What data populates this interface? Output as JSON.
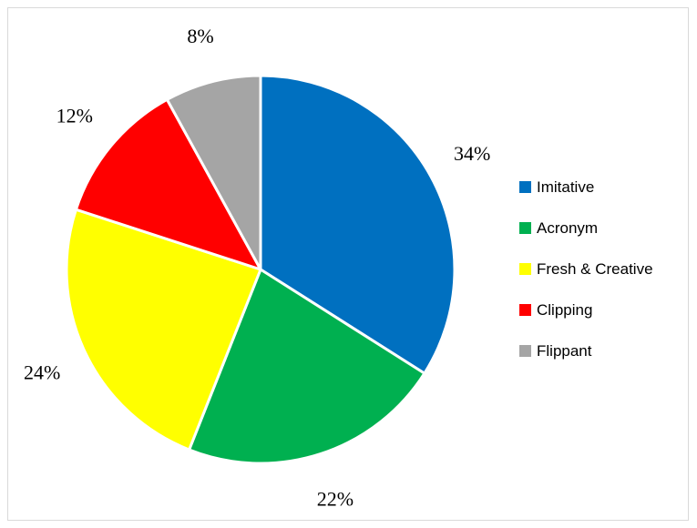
{
  "chart_data": {
    "type": "pie",
    "title": "",
    "legend_position": "right",
    "slices": [
      {
        "label": "Imitative",
        "value": 34,
        "display": "34%",
        "color": "#0070C0"
      },
      {
        "label": "Acronym",
        "value": 22,
        "display": "22%",
        "color": "#00B050"
      },
      {
        "label": "Fresh & Creative",
        "value": 24,
        "display": "24%",
        "color": "#FFFF00"
      },
      {
        "label": "Clipping",
        "value": 12,
        "display": "12%",
        "color": "#FF0000"
      },
      {
        "label": "Flippant",
        "value": 8,
        "display": "8%",
        "color": "#A5A5A5"
      }
    ]
  }
}
